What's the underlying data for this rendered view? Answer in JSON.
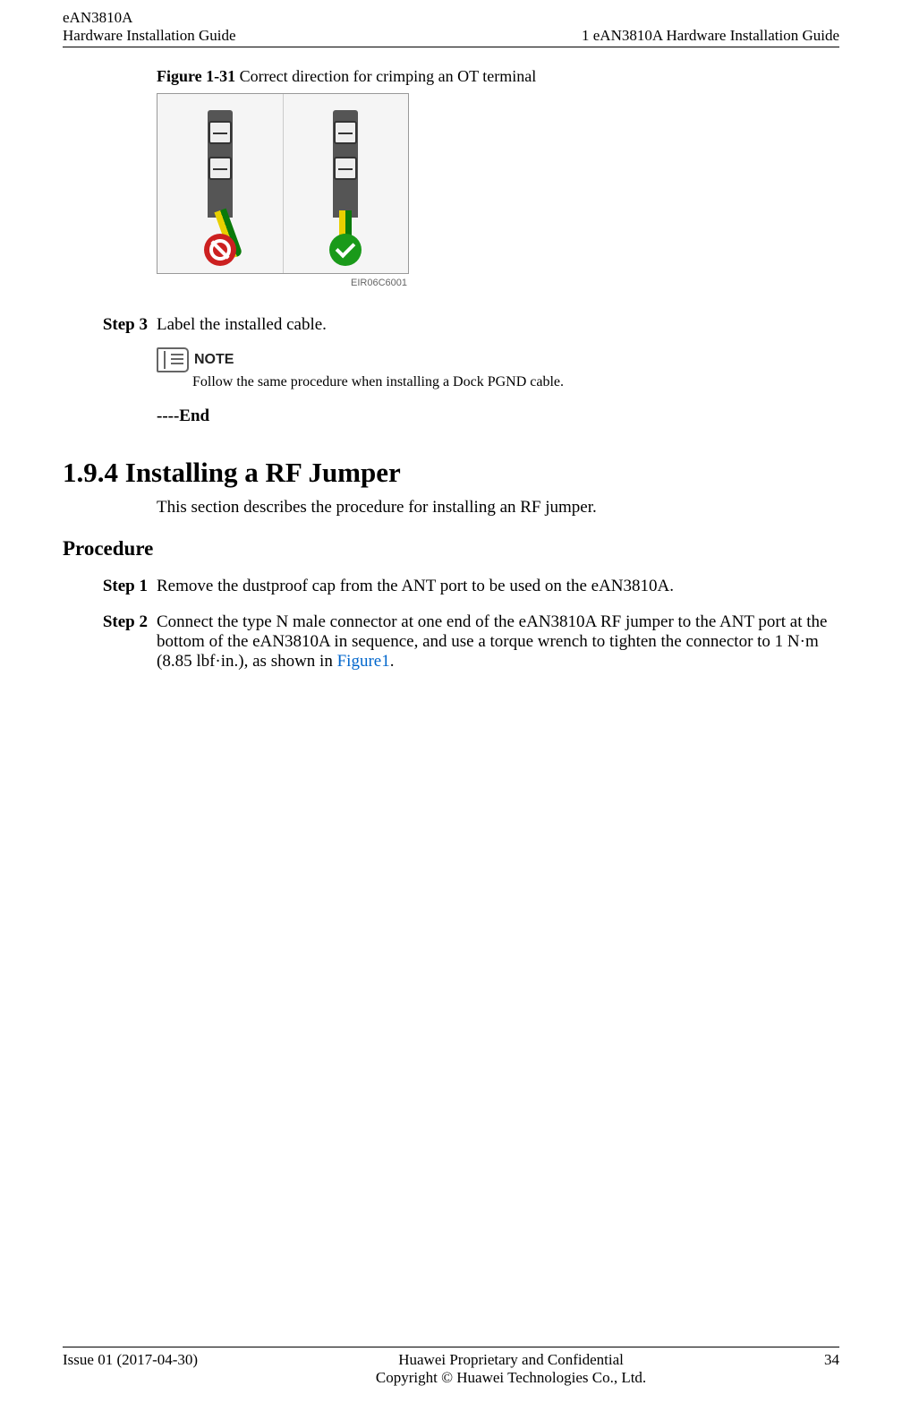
{
  "header": {
    "product": "eAN3810A",
    "doc_title_left": "Hardware Installation Guide",
    "doc_title_right": "1 eAN3810A Hardware Installation Guide"
  },
  "figure": {
    "label": "Figure 1-31",
    "caption": "Correct direction for crimping an OT terminal",
    "image_id": "EIR06C6001"
  },
  "step3": {
    "label": "Step 3",
    "text": "Label the installed cable."
  },
  "note": {
    "label": "NOTE",
    "text": "Follow the same procedure when installing a Dock PGND cable."
  },
  "end": "----End",
  "section": {
    "heading": "1.9.4 Installing a RF Jumper",
    "desc": "This section describes the procedure for installing an RF jumper."
  },
  "procedure_label": "Procedure",
  "step1": {
    "label": "Step 1",
    "text": "Remove the dustproof cap from the ANT port to be used on the eAN3810A."
  },
  "step2": {
    "label": "Step 2",
    "text_part1": "Connect the type N male connector at one end of the eAN3810A RF jumper to the ANT port at the bottom of the eAN3810A in sequence, and use a torque wrench to tighten the connector to 1 N·m (8.85 lbf·in.), as shown in ",
    "link": "Figure1",
    "text_part2": "."
  },
  "footer": {
    "issue": "Issue 01 (2017-04-30)",
    "line1": "Huawei Proprietary and Confidential",
    "line2": "Copyright © Huawei Technologies Co., Ltd.",
    "page": "34"
  }
}
